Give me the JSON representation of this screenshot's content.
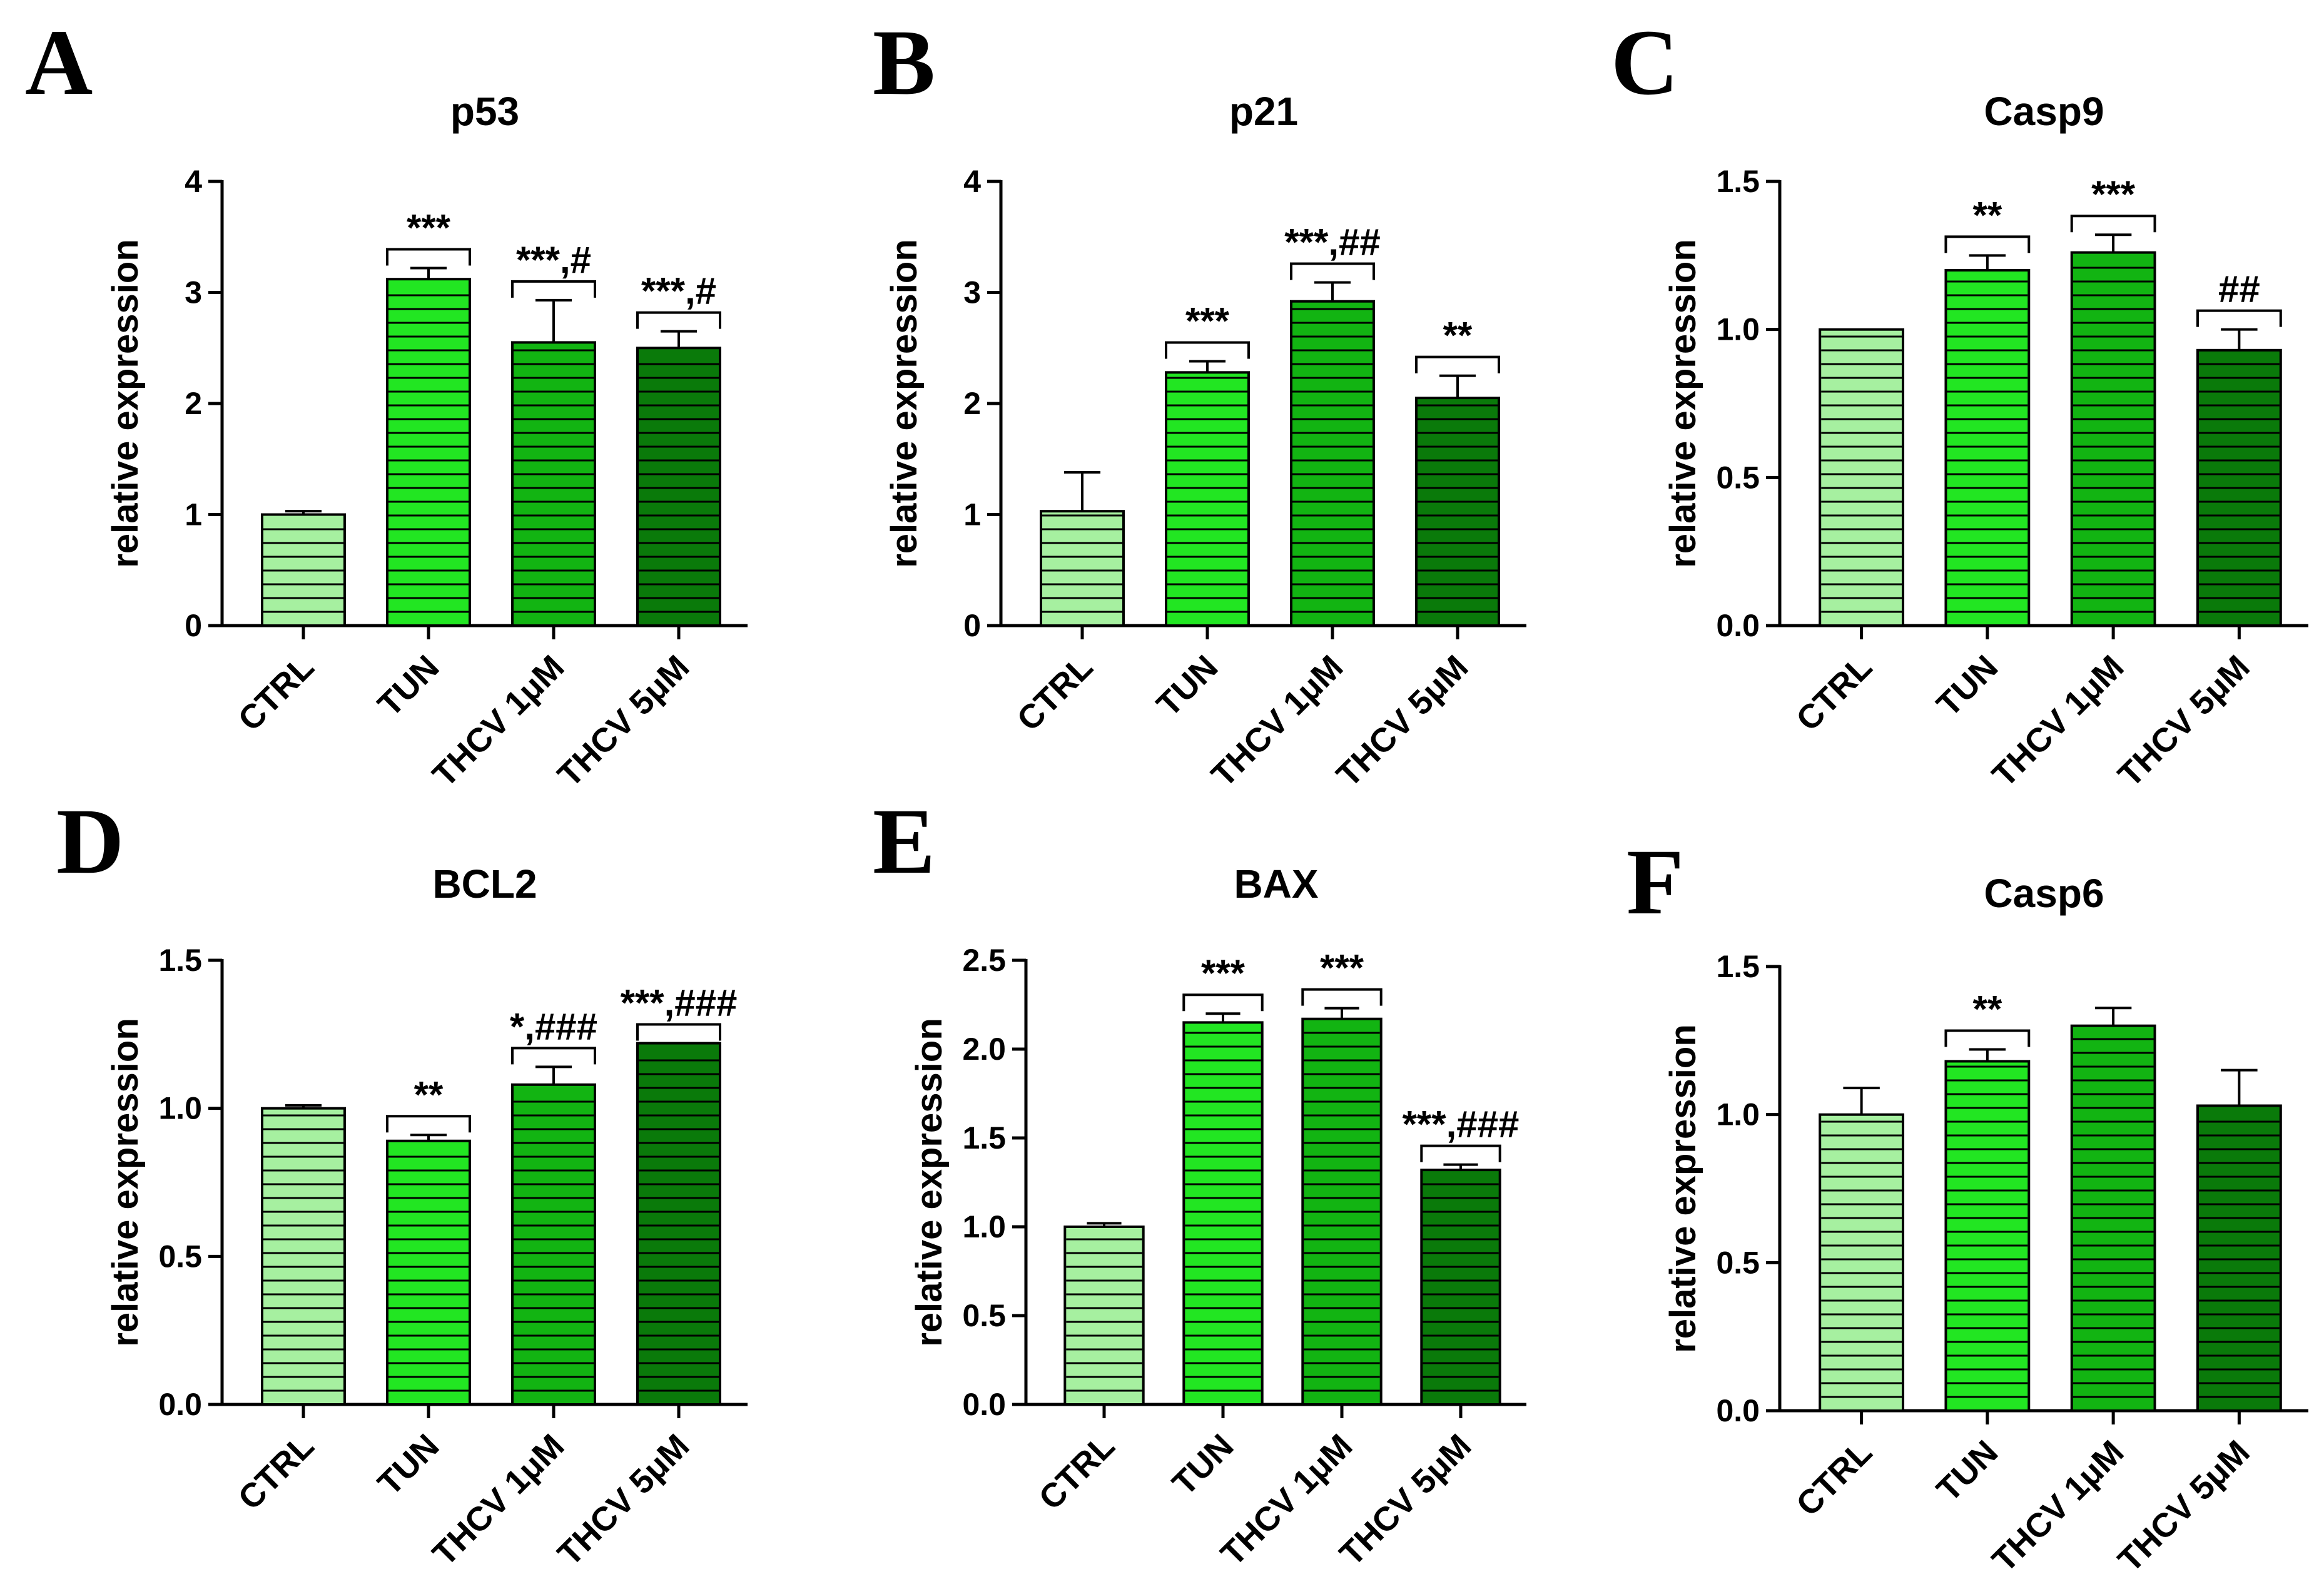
{
  "chart_data": [
    {
      "type": "bar",
      "panel": "A",
      "title": "p53",
      "xlabel": "",
      "ylabel": "relative expression",
      "ylim": [
        0,
        4
      ],
      "yticks": [
        0,
        1,
        2,
        3,
        4
      ],
      "ytick_labels": [
        "0",
        "1",
        "2",
        "3",
        "4"
      ],
      "categories": [
        "CTRL",
        "TUN",
        "THCV 1μM",
        "THCV 5μM"
      ],
      "values": [
        1.0,
        3.12,
        2.55,
        2.5
      ],
      "errors": [
        0.03,
        0.1,
        0.38,
        0.15
      ],
      "significance": [
        "",
        "***",
        "***,#",
        "***,#"
      ]
    },
    {
      "type": "bar",
      "panel": "B",
      "title": "p21",
      "xlabel": "",
      "ylabel": "relative expression",
      "ylim": [
        0,
        4
      ],
      "yticks": [
        0,
        1,
        2,
        3,
        4
      ],
      "ytick_labels": [
        "0",
        "1",
        "2",
        "3",
        "4"
      ],
      "categories": [
        "CTRL",
        "TUN",
        "THCV 1μM",
        "THCV 5μM"
      ],
      "values": [
        1.03,
        2.28,
        2.92,
        2.05
      ],
      "errors": [
        0.35,
        0.1,
        0.17,
        0.2
      ],
      "significance": [
        "",
        "***",
        "***,##",
        "**"
      ]
    },
    {
      "type": "bar",
      "panel": "C",
      "title": "Casp9",
      "xlabel": "",
      "ylabel": "relative expression",
      "ylim": [
        0,
        1.5
      ],
      "yticks": [
        0,
        0.5,
        1.0,
        1.5
      ],
      "ytick_labels": [
        "0.0",
        "0.5",
        "1.0",
        "1.5"
      ],
      "categories": [
        "CTRL",
        "TUN",
        "THCV 1μM",
        "THCV 5μM"
      ],
      "values": [
        1.0,
        1.2,
        1.26,
        0.93
      ],
      "errors": [
        0.0,
        0.05,
        0.06,
        0.07
      ],
      "significance": [
        "",
        "**",
        "***",
        "##"
      ]
    },
    {
      "type": "bar",
      "panel": "D",
      "title": "BCL2",
      "xlabel": "",
      "ylabel": "relative expression",
      "ylim": [
        0,
        1.5
      ],
      "yticks": [
        0,
        0.5,
        1.0,
        1.5
      ],
      "ytick_labels": [
        "0.0",
        "0.5",
        "1.0",
        "1.5"
      ],
      "categories": [
        "CTRL",
        "TUN",
        "THCV 1μM",
        "THCV 5μM"
      ],
      "values": [
        1.0,
        0.89,
        1.08,
        1.22
      ],
      "errors": [
        0.01,
        0.02,
        0.06,
        0.0
      ],
      "significance": [
        "",
        "**",
        "*,###",
        "***,###"
      ]
    },
    {
      "type": "bar",
      "panel": "E",
      "title": "BAX",
      "xlabel": "",
      "ylabel": "relative expression",
      "ylim": [
        0,
        2.5
      ],
      "yticks": [
        0,
        0.5,
        1.0,
        1.5,
        2.0,
        2.5
      ],
      "ytick_labels": [
        "0.0",
        "0.5",
        "1.0",
        "1.5",
        "2.0",
        "2.5"
      ],
      "categories": [
        "CTRL",
        "TUN",
        "THCV 1μM",
        "THCV 5μM"
      ],
      "values": [
        1.0,
        2.15,
        2.17,
        1.32
      ],
      "errors": [
        0.02,
        0.05,
        0.06,
        0.03
      ],
      "significance": [
        "",
        "***",
        "***",
        "***,###"
      ]
    },
    {
      "type": "bar",
      "panel": "F",
      "title": "Casp6",
      "xlabel": "",
      "ylabel": "relative expression",
      "ylim": [
        0,
        1.5
      ],
      "yticks": [
        0,
        0.5,
        1.0,
        1.5
      ],
      "ytick_labels": [
        "0.0",
        "0.5",
        "1.0",
        "1.5"
      ],
      "categories": [
        "CTRL",
        "TUN",
        "THCV 1μM",
        "THCV 5μM"
      ],
      "values": [
        1.0,
        1.18,
        1.3,
        1.03
      ],
      "errors": [
        0.09,
        0.04,
        0.06,
        0.12
      ],
      "significance": [
        "",
        "**",
        "",
        ""
      ]
    }
  ],
  "colors": {
    "bars": [
      "#a6f0a0",
      "#22e622",
      "#12b412",
      "#0a7a0a"
    ],
    "axis": "#000000",
    "background": "#ffffff"
  }
}
